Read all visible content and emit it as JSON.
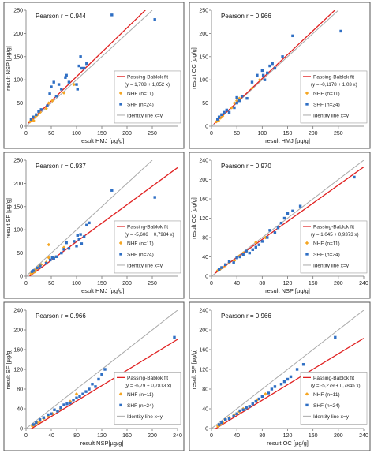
{
  "figure": {
    "legend_labels": {
      "fit": "Passing-Bablok fit",
      "nhf": "NHF (n=11)",
      "shf": "SHF (n=24)",
      "identity": "Identity line x=y"
    },
    "colors": {
      "fit": "#e02020",
      "identity": "#a9a9a9",
      "nhf": "#f5a623",
      "shf": "#2f6fc4",
      "panel_border": "#555555"
    }
  },
  "chart_data": [
    {
      "type": "scatter",
      "annotation": "Pearson r = 0.944",
      "xlabel": "result HMJ [µg/g]",
      "ylabel": "result NSP [µg/g]",
      "xlim": [
        0,
        300
      ],
      "ylim": [
        0,
        250
      ],
      "xticks": [
        0,
        50,
        100,
        150,
        200,
        250
      ],
      "yticks": [
        0,
        50,
        100,
        150,
        200,
        250
      ],
      "fit_equation": "(y = 1,708 + 1,052 x)",
      "fit": {
        "intercept": 1.708,
        "slope": 1.052
      },
      "series": [
        {
          "name": "NHF (n=11)",
          "points": [
            [
              8,
              10
            ],
            [
              12,
              14
            ],
            [
              15,
              12
            ],
            [
              18,
              20
            ],
            [
              22,
              24
            ],
            [
              28,
              30
            ],
            [
              40,
              38
            ],
            [
              45,
              50
            ],
            [
              52,
              55
            ],
            [
              75,
              72
            ],
            [
              95,
              90
            ]
          ]
        },
        {
          "name": "SHF (n=24)",
          "points": [
            [
              10,
              15
            ],
            [
              14,
              20
            ],
            [
              20,
              25
            ],
            [
              25,
              32
            ],
            [
              30,
              36
            ],
            [
              42,
              44
            ],
            [
              47,
              70
            ],
            [
              50,
              85
            ],
            [
              55,
              95
            ],
            [
              60,
              65
            ],
            [
              65,
              90
            ],
            [
              70,
              80
            ],
            [
              78,
              105
            ],
            [
              80,
              110
            ],
            [
              85,
              95
            ],
            [
              100,
              90
            ],
            [
              102,
              80
            ],
            [
              105,
              130
            ],
            [
              108,
              150
            ],
            [
              110,
              125
            ],
            [
              115,
              125
            ],
            [
              120,
              135
            ],
            [
              170,
              240
            ],
            [
              255,
              230
            ]
          ]
        }
      ]
    },
    {
      "type": "scatter",
      "annotation": "Pearson r = 0.966",
      "xlabel": "result HMJ [µg/g]",
      "ylabel": "result OC [µg/g]",
      "xlim": [
        0,
        300
      ],
      "ylim": [
        0,
        250
      ],
      "xticks": [
        0,
        50,
        100,
        150,
        200,
        250
      ],
      "yticks": [
        0,
        50,
        100,
        150,
        200,
        250
      ],
      "fit_equation": "(y = -0,1178 + 1,03 x)",
      "fit": {
        "intercept": -0.1178,
        "slope": 1.03
      },
      "series": [
        {
          "name": "NHF (n=11)",
          "points": [
            [
              10,
              10
            ],
            [
              14,
              12
            ],
            [
              18,
              18
            ],
            [
              22,
              22
            ],
            [
              25,
              28
            ],
            [
              40,
              40
            ],
            [
              45,
              50
            ],
            [
              50,
              55
            ],
            [
              55,
              60
            ],
            [
              80,
              82
            ],
            [
              95,
              100
            ]
          ]
        },
        {
          "name": "SHF (n=24)",
          "points": [
            [
              12,
              15
            ],
            [
              15,
              20
            ],
            [
              20,
              25
            ],
            [
              25,
              30
            ],
            [
              30,
              35
            ],
            [
              35,
              30
            ],
            [
              45,
              40
            ],
            [
              50,
              62
            ],
            [
              55,
              55
            ],
            [
              60,
              65
            ],
            [
              70,
              60
            ],
            [
              80,
              95
            ],
            [
              90,
              110
            ],
            [
              100,
              120
            ],
            [
              102,
              110
            ],
            [
              105,
              100
            ],
            [
              110,
              115
            ],
            [
              115,
              130
            ],
            [
              120,
              135
            ],
            [
              125,
              125
            ],
            [
              140,
              150
            ],
            [
              160,
              195
            ],
            [
              255,
              205
            ],
            [
              50,
              50
            ]
          ]
        }
      ]
    },
    {
      "type": "scatter",
      "annotation": "Pearson r = 0.937",
      "xlabel": "result HMJ [µg/g]",
      "ylabel": "result SF [µg/g]",
      "xlim": [
        0,
        300
      ],
      "ylim": [
        0,
        250
      ],
      "xticks": [
        0,
        50,
        100,
        150,
        200,
        250
      ],
      "yticks": [
        0,
        50,
        100,
        150,
        200,
        250
      ],
      "fit_equation": "(y = -5,606 + 0,7984 x)",
      "fit": {
        "intercept": -5.606,
        "slope": 0.7984
      },
      "series": [
        {
          "name": "NHF (n=11)",
          "points": [
            [
              10,
              5
            ],
            [
              14,
              8
            ],
            [
              18,
              10
            ],
            [
              20,
              15
            ],
            [
              25,
              20
            ],
            [
              30,
              25
            ],
            [
              40,
              30
            ],
            [
              45,
              40
            ],
            [
              55,
              40
            ],
            [
              75,
              62
            ],
            [
              45,
              68
            ]
          ]
        },
        {
          "name": "SHF (n=24)",
          "points": [
            [
              12,
              10
            ],
            [
              15,
              12
            ],
            [
              22,
              18
            ],
            [
              28,
              22
            ],
            [
              40,
              28
            ],
            [
              48,
              35
            ],
            [
              52,
              40
            ],
            [
              55,
              38
            ],
            [
              60,
              42
            ],
            [
              70,
              50
            ],
            [
              75,
              58
            ],
            [
              80,
              72
            ],
            [
              85,
              60
            ],
            [
              95,
              75
            ],
            [
              100,
              65
            ],
            [
              102,
              88
            ],
            [
              105,
              80
            ],
            [
              108,
              90
            ],
            [
              110,
              70
            ],
            [
              115,
              85
            ],
            [
              120,
              110
            ],
            [
              125,
              115
            ],
            [
              170,
              185
            ],
            [
              255,
              170
            ]
          ]
        }
      ]
    },
    {
      "type": "scatter",
      "annotation": "Pearson r = 0.970",
      "xlabel": "result NSP [µg/g]",
      "ylabel": "result OC [µg/g]",
      "xlim": [
        0,
        240
      ],
      "ylim": [
        0,
        240
      ],
      "xticks": [
        0,
        40,
        80,
        120,
        160,
        200,
        240
      ],
      "yticks": [
        0,
        40,
        80,
        120,
        160,
        200,
        240
      ],
      "fit_equation": "(y = 1,045 + 0,9373 x)",
      "fit": {
        "intercept": 1.045,
        "slope": 0.9373
      },
      "series": [
        {
          "name": "NHF (n=11)",
          "points": [
            [
              10,
              12
            ],
            [
              14,
              15
            ],
            [
              18,
              18
            ],
            [
              22,
              22
            ],
            [
              28,
              28
            ],
            [
              36,
              32
            ],
            [
              44,
              42
            ],
            [
              50,
              48
            ],
            [
              55,
              52
            ],
            [
              70,
              70
            ],
            [
              85,
              80
            ]
          ]
        },
        {
          "name": "SHF (n=24)",
          "points": [
            [
              12,
              14
            ],
            [
              16,
              18
            ],
            [
              22,
              24
            ],
            [
              28,
              30
            ],
            [
              35,
              28
            ],
            [
              40,
              38
            ],
            [
              45,
              40
            ],
            [
              50,
              45
            ],
            [
              55,
              52
            ],
            [
              60,
              48
            ],
            [
              65,
              55
            ],
            [
              70,
              60
            ],
            [
              75,
              65
            ],
            [
              80,
              72
            ],
            [
              88,
              80
            ],
            [
              92,
              95
            ],
            [
              100,
              90
            ],
            [
              105,
              100
            ],
            [
              110,
              110
            ],
            [
              115,
              120
            ],
            [
              120,
              130
            ],
            [
              128,
              135
            ],
            [
              140,
              145
            ],
            [
              225,
              205
            ]
          ]
        }
      ]
    },
    {
      "type": "scatter",
      "annotation": "Pearson r = 0.966",
      "xlabel": "result NSP[µg/g]",
      "ylabel": "result SF [µg/g]",
      "xlim": [
        0,
        240
      ],
      "ylim": [
        0,
        240
      ],
      "xticks": [
        0,
        40,
        80,
        120,
        160,
        200,
        240
      ],
      "yticks": [
        0,
        40,
        80,
        120,
        160,
        200,
        240
      ],
      "fit_equation": "(y = -6,79 + 0,7813 x)",
      "fit": {
        "intercept": -6.79,
        "slope": 0.7813
      },
      "series": [
        {
          "name": "NHF (n=11)",
          "points": [
            [
              10,
              5
            ],
            [
              14,
              8
            ],
            [
              18,
              12
            ],
            [
              22,
              15
            ],
            [
              28,
              20
            ],
            [
              35,
              25
            ],
            [
              42,
              30
            ],
            [
              50,
              35
            ],
            [
              55,
              40
            ],
            [
              70,
              55
            ],
            [
              80,
              70
            ]
          ]
        },
        {
          "name": "SHF (n=24)",
          "points": [
            [
              12,
              8
            ],
            [
              16,
              12
            ],
            [
              22,
              18
            ],
            [
              28,
              22
            ],
            [
              35,
              28
            ],
            [
              40,
              30
            ],
            [
              45,
              38
            ],
            [
              50,
              35
            ],
            [
              55,
              42
            ],
            [
              60,
              48
            ],
            [
              65,
              50
            ],
            [
              70,
              52
            ],
            [
              75,
              58
            ],
            [
              80,
              62
            ],
            [
              85,
              65
            ],
            [
              90,
              70
            ],
            [
              95,
              75
            ],
            [
              100,
              80
            ],
            [
              105,
              90
            ],
            [
              110,
              85
            ],
            [
              115,
              100
            ],
            [
              120,
              110
            ],
            [
              125,
              120
            ],
            [
              235,
              185
            ]
          ]
        }
      ]
    },
    {
      "type": "scatter",
      "annotation": "Pearson r = 0.966",
      "xlabel": "result OC [µg/g]",
      "ylabel": "result SF [µg/g]",
      "xlim": [
        0,
        240
      ],
      "ylim": [
        0,
        240
      ],
      "xticks": [
        0,
        40,
        80,
        120,
        160,
        200,
        240
      ],
      "yticks": [
        0,
        40,
        80,
        120,
        160,
        200,
        240
      ],
      "fit_equation": "(y = -5,279 + 0,7845 x)",
      "fit": {
        "intercept": -5.279,
        "slope": 0.7845
      },
      "series": [
        {
          "name": "NHF (n=11)",
          "points": [
            [
              10,
              5
            ],
            [
              14,
              8
            ],
            [
              18,
              12
            ],
            [
              22,
              18
            ],
            [
              28,
              22
            ],
            [
              36,
              28
            ],
            [
              44,
              34
            ],
            [
              50,
              40
            ],
            [
              55,
              42
            ],
            [
              72,
              58
            ],
            [
              85,
              70
            ]
          ]
        },
        {
          "name": "SHF (n=24)",
          "points": [
            [
              12,
              8
            ],
            [
              16,
              12
            ],
            [
              22,
              18
            ],
            [
              28,
              20
            ],
            [
              35,
              25
            ],
            [
              40,
              30
            ],
            [
              45,
              36
            ],
            [
              50,
              38
            ],
            [
              55,
              42
            ],
            [
              60,
              45
            ],
            [
              65,
              50
            ],
            [
              70,
              55
            ],
            [
              75,
              60
            ],
            [
              80,
              65
            ],
            [
              90,
              72
            ],
            [
              95,
              80
            ],
            [
              100,
              85
            ],
            [
              110,
              90
            ],
            [
              115,
              95
            ],
            [
              120,
              100
            ],
            [
              125,
              105
            ],
            [
              135,
              120
            ],
            [
              145,
              130
            ],
            [
              195,
              185
            ]
          ]
        }
      ]
    }
  ]
}
